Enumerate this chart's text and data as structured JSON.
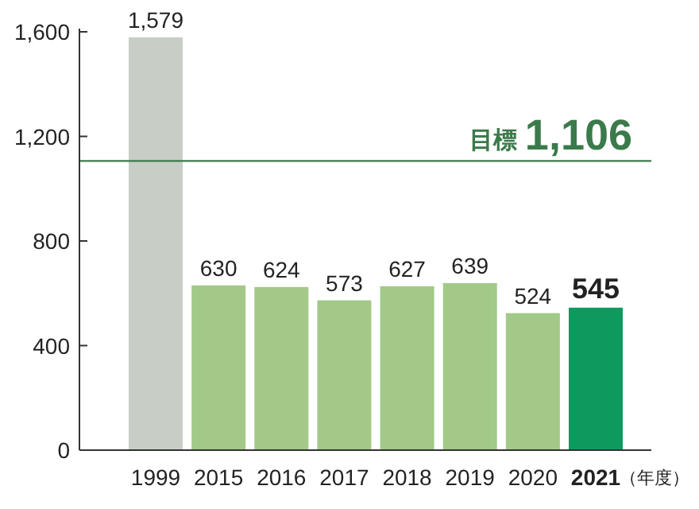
{
  "chart_data": {
    "type": "bar",
    "categories": [
      "1999",
      "2015",
      "2016",
      "2017",
      "2018",
      "2019",
      "2020",
      "2021"
    ],
    "values": [
      1579,
      630,
      624,
      573,
      627,
      639,
      524,
      545
    ],
    "value_labels": [
      "1,579",
      "630",
      "624",
      "573",
      "627",
      "639",
      "524",
      "545"
    ],
    "colors": [
      "#c8cec6",
      "#a2c987",
      "#a2c987",
      "#a2c987",
      "#a2c987",
      "#a2c987",
      "#a2c987",
      "#0e9a5e"
    ],
    "xlabel": "（年度）",
    "ylim": [
      0,
      1600
    ],
    "yticks": [
      0,
      {
        "value": 400,
        "label": "400"
      },
      {
        "value": 800,
        "label": "800"
      },
      {
        "value": 1200,
        "label": "1,200"
      },
      {
        "value": 1600,
        "label": "1,600"
      }
    ],
    "ref_lines": [
      {
        "axis": "y",
        "value": 1106,
        "label": "目標",
        "color": "#3b7a4b"
      }
    ],
    "annotations": [
      {
        "text": "1,106",
        "y": 1106
      }
    ],
    "grid": false
  }
}
